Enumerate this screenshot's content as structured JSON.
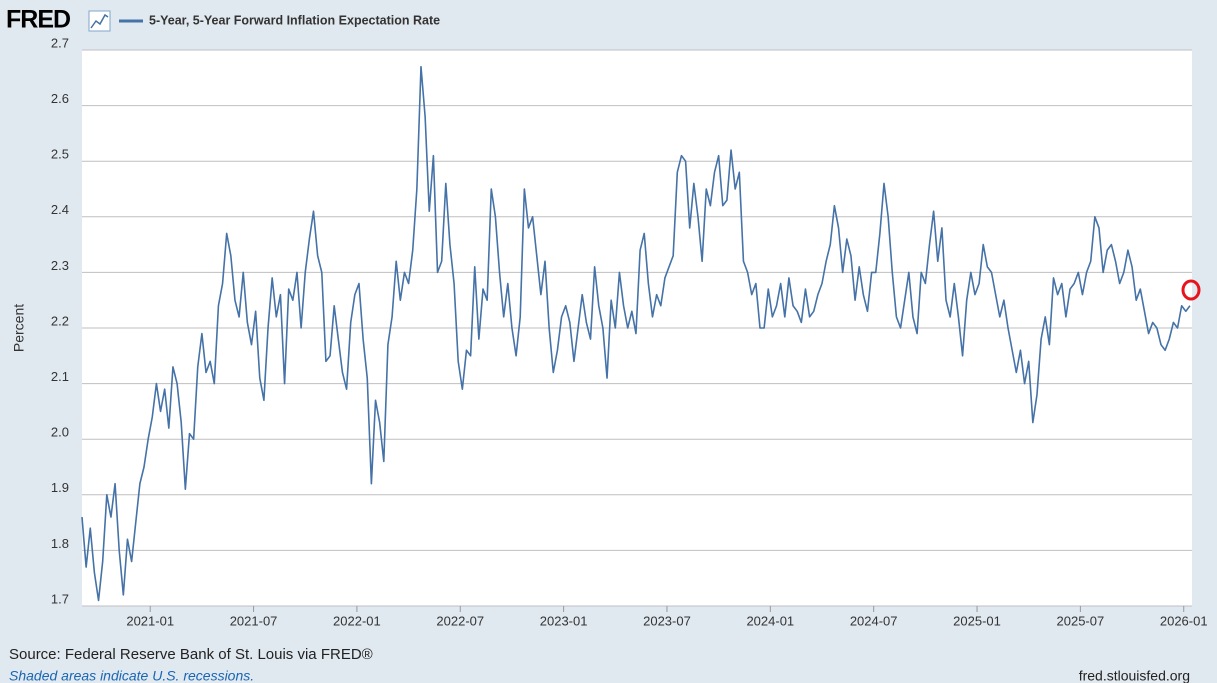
{
  "logo": "FRED",
  "chart_data": {
    "type": "line",
    "ylabel": "Percent",
    "source": "Source: Federal Reserve Bank of St. Louis via FRED®",
    "note": "Shaded areas indicate U.S. recessions.",
    "site": "fred.stlouisfed.org",
    "xlim": [
      2020.67,
      2026.04
    ],
    "xticks": [
      {
        "value": 2021,
        "label": "2021-01"
      },
      {
        "value": 2021.5,
        "label": "2021-07"
      },
      {
        "value": 2022,
        "label": "2022-01"
      },
      {
        "value": 2022.5,
        "label": "2022-07"
      },
      {
        "value": 2023,
        "label": "2023-01"
      },
      {
        "value": 2023.5,
        "label": "2023-07"
      },
      {
        "value": 2024,
        "label": "2024-01"
      },
      {
        "value": 2024.5,
        "label": "2024-07"
      },
      {
        "value": 2025,
        "label": "2025-01"
      },
      {
        "value": 2025.5,
        "label": "2025-07"
      },
      {
        "value": 2026,
        "label": "2026-01"
      }
    ],
    "ylim": [
      1.7,
      2.7
    ],
    "yticks": [
      1.7,
      1.8,
      1.9,
      {
        "value": 2,
        "label": "2.0"
      },
      2.1,
      2.2,
      2.3,
      2.4,
      2.5,
      2.6,
      2.7
    ],
    "grid": true,
    "x": [
      2020.67,
      2020.69,
      2020.71,
      2020.73,
      2020.75,
      2020.77,
      2020.79,
      2020.81,
      2020.83,
      2020.85,
      2020.87,
      2020.89,
      2020.91,
      2020.93,
      2020.95,
      2020.97,
      2020.99,
      2021.01,
      2021.03,
      2021.05,
      2021.07,
      2021.09,
      2021.11,
      2021.13,
      2021.15,
      2021.17,
      2021.19,
      2021.21,
      2021.23,
      2021.25,
      2021.27,
      2021.29,
      2021.31,
      2021.33,
      2021.35,
      2021.37,
      2021.39,
      2021.41,
      2021.43,
      2021.45,
      2021.47,
      2021.49,
      2021.51,
      2021.53,
      2021.55,
      2021.57,
      2021.59,
      2021.61,
      2021.63,
      2021.65,
      2021.67,
      2021.69,
      2021.71,
      2021.73,
      2021.75,
      2021.77,
      2021.79,
      2021.81,
      2021.83,
      2021.85,
      2021.87,
      2021.89,
      2021.91,
      2021.93,
      2021.95,
      2021.97,
      2021.99,
      2022.01,
      2022.03,
      2022.05,
      2022.07,
      2022.09,
      2022.11,
      2022.13,
      2022.15,
      2022.17,
      2022.19,
      2022.21,
      2022.23,
      2022.25,
      2022.27,
      2022.29,
      2022.31,
      2022.33,
      2022.35,
      2022.37,
      2022.39,
      2022.41,
      2022.43,
      2022.45,
      2022.47,
      2022.49,
      2022.51,
      2022.53,
      2022.55,
      2022.57,
      2022.59,
      2022.61,
      2022.63,
      2022.65,
      2022.67,
      2022.69,
      2022.71,
      2022.73,
      2022.75,
      2022.77,
      2022.79,
      2022.81,
      2022.83,
      2022.85,
      2022.87,
      2022.89,
      2022.91,
      2022.93,
      2022.95,
      2022.97,
      2022.99,
      2023.01,
      2023.03,
      2023.05,
      2023.07,
      2023.09,
      2023.11,
      2023.13,
      2023.15,
      2023.17,
      2023.19,
      2023.21,
      2023.23,
      2023.25,
      2023.27,
      2023.29,
      2023.31,
      2023.33,
      2023.35,
      2023.37,
      2023.39,
      2023.41,
      2023.43,
      2023.45,
      2023.47,
      2023.49,
      2023.51,
      2023.53,
      2023.55,
      2023.57,
      2023.59,
      2023.61,
      2023.63,
      2023.65,
      2023.67,
      2023.69,
      2023.71,
      2023.73,
      2023.75,
      2023.77,
      2023.79,
      2023.81,
      2023.83,
      2023.85,
      2023.87,
      2023.89,
      2023.91,
      2023.93,
      2023.95,
      2023.97,
      2023.99,
      2024.01,
      2024.03,
      2024.05,
      2024.07,
      2024.09,
      2024.11,
      2024.13,
      2024.15,
      2024.17,
      2024.19,
      2024.21,
      2024.23,
      2024.25,
      2024.27,
      2024.29,
      2024.31,
      2024.33,
      2024.35,
      2024.37,
      2024.39,
      2024.41,
      2024.43,
      2024.45,
      2024.47,
      2024.49,
      2024.51,
      2024.53,
      2024.55,
      2024.57,
      2024.59,
      2024.61,
      2024.63,
      2024.65,
      2024.67,
      2024.69,
      2024.71,
      2024.73,
      2024.75,
      2024.77,
      2024.79,
      2024.81,
      2024.83,
      2024.85,
      2024.87,
      2024.89,
      2024.91,
      2024.93,
      2024.95,
      2024.97,
      2024.99,
      2025.01,
      2025.03,
      2025.05,
      2025.07,
      2025.09,
      2025.11,
      2025.13,
      2025.15,
      2025.17,
      2025.19,
      2025.21,
      2025.23,
      2025.25,
      2025.27,
      2025.29,
      2025.31,
      2025.33,
      2025.35,
      2025.37,
      2025.39,
      2025.41,
      2025.43,
      2025.45,
      2025.47,
      2025.49,
      2025.51,
      2025.53,
      2025.55,
      2025.57,
      2025.59,
      2025.61,
      2025.63,
      2025.65,
      2025.67,
      2025.69,
      2025.71,
      2025.73,
      2025.75,
      2025.77,
      2025.79,
      2025.81,
      2025.83,
      2025.85,
      2025.87,
      2025.89,
      2025.91,
      2025.93,
      2025.95,
      2025.97,
      2025.99,
      2026.01,
      2026.03
    ],
    "series": [
      {
        "name": "5-Year, 5-Year Forward Inflation Expectation Rate",
        "color": "#4572a7",
        "values": [
          1.86,
          1.77,
          1.84,
          1.76,
          1.71,
          1.78,
          1.9,
          1.86,
          1.92,
          1.8,
          1.72,
          1.82,
          1.78,
          1.85,
          1.92,
          1.95,
          2.0,
          2.04,
          2.1,
          2.05,
          2.09,
          2.02,
          2.13,
          2.1,
          2.03,
          1.91,
          2.01,
          2.0,
          2.13,
          2.19,
          2.12,
          2.14,
          2.1,
          2.24,
          2.28,
          2.37,
          2.33,
          2.25,
          2.22,
          2.3,
          2.21,
          2.17,
          2.23,
          2.11,
          2.07,
          2.2,
          2.29,
          2.22,
          2.26,
          2.1,
          2.27,
          2.25,
          2.3,
          2.2,
          2.3,
          2.36,
          2.41,
          2.33,
          2.3,
          2.14,
          2.15,
          2.24,
          2.18,
          2.12,
          2.09,
          2.21,
          2.26,
          2.28,
          2.18,
          2.11,
          1.92,
          2.07,
          2.03,
          1.96,
          2.17,
          2.22,
          2.32,
          2.25,
          2.3,
          2.28,
          2.34,
          2.45,
          2.67,
          2.58,
          2.41,
          2.51,
          2.3,
          2.32,
          2.46,
          2.35,
          2.28,
          2.14,
          2.09,
          2.16,
          2.15,
          2.31,
          2.18,
          2.27,
          2.25,
          2.45,
          2.4,
          2.3,
          2.22,
          2.28,
          2.2,
          2.15,
          2.22,
          2.45,
          2.38,
          2.4,
          2.33,
          2.26,
          2.32,
          2.2,
          2.12,
          2.16,
          2.22,
          2.24,
          2.21,
          2.14,
          2.2,
          2.26,
          2.21,
          2.18,
          2.31,
          2.24,
          2.2,
          2.11,
          2.25,
          2.2,
          2.3,
          2.24,
          2.2,
          2.23,
          2.19,
          2.34,
          2.37,
          2.28,
          2.22,
          2.26,
          2.24,
          2.29,
          2.31,
          2.33,
          2.48,
          2.51,
          2.5,
          2.38,
          2.46,
          2.4,
          2.32,
          2.45,
          2.42,
          2.48,
          2.51,
          2.42,
          2.43,
          2.52,
          2.45,
          2.48,
          2.32,
          2.3,
          2.26,
          2.28,
          2.2,
          2.2,
          2.27,
          2.22,
          2.24,
          2.28,
          2.22,
          2.29,
          2.24,
          2.23,
          2.21,
          2.27,
          2.22,
          2.23,
          2.26,
          2.28,
          2.32,
          2.35,
          2.42,
          2.38,
          2.3,
          2.36,
          2.33,
          2.25,
          2.31,
          2.26,
          2.23,
          2.3,
          2.3,
          2.37,
          2.46,
          2.4,
          2.3,
          2.22,
          2.2,
          2.25,
          2.3,
          2.22,
          2.19,
          2.3,
          2.28,
          2.35,
          2.41,
          2.32,
          2.38,
          2.25,
          2.22,
          2.28,
          2.22,
          2.15,
          2.25,
          2.3,
          2.26,
          2.28,
          2.35,
          2.31,
          2.3,
          2.26,
          2.22,
          2.25,
          2.2,
          2.16,
          2.12,
          2.16,
          2.1,
          2.14,
          2.03,
          2.08,
          2.18,
          2.22,
          2.17,
          2.29,
          2.26,
          2.28,
          2.22,
          2.27,
          2.28,
          2.3,
          2.26,
          2.3,
          2.32,
          2.4,
          2.38,
          2.3,
          2.34,
          2.35,
          2.32,
          2.28,
          2.3,
          2.34,
          2.31,
          2.25,
          2.27,
          2.23,
          2.19,
          2.21,
          2.2,
          2.17,
          2.16,
          2.18,
          2.21,
          2.2,
          2.24,
          2.23,
          2.24
        ]
      }
    ]
  }
}
